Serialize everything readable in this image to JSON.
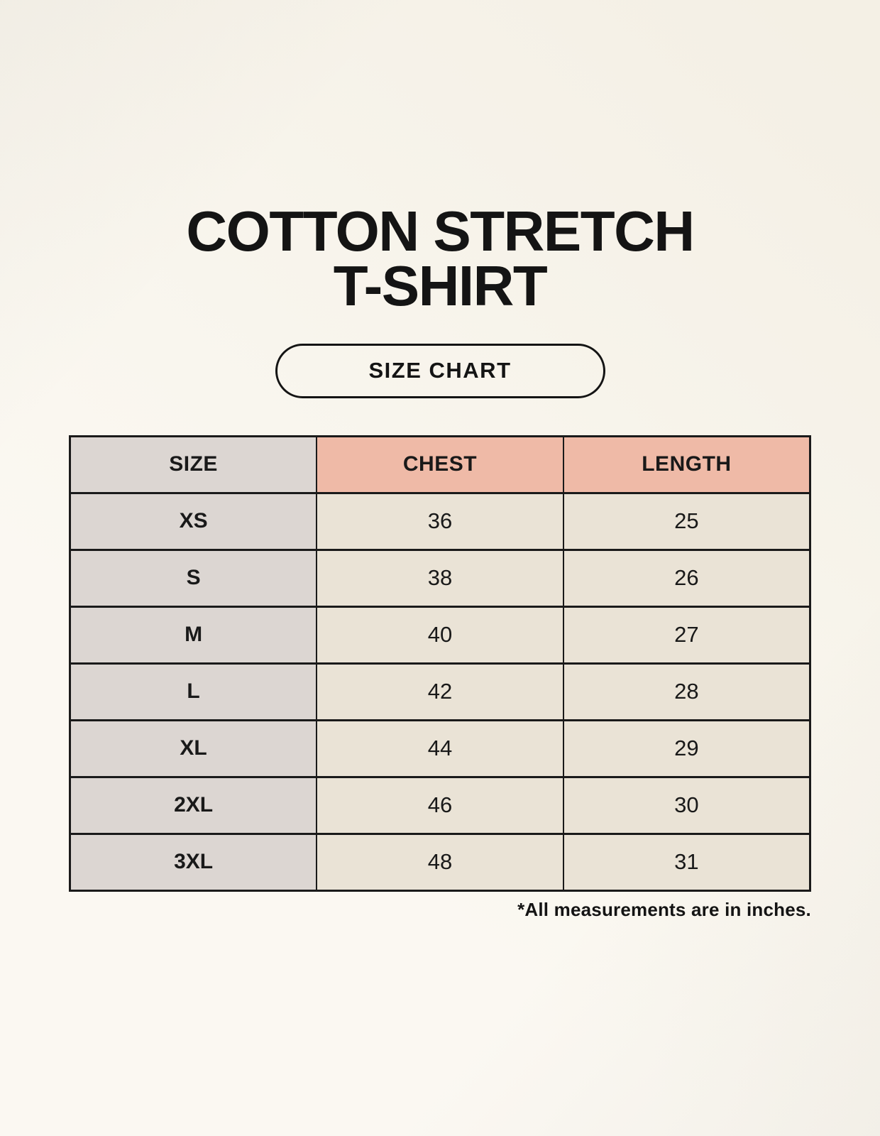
{
  "page": {
    "title_line1": "COTTON STRETCH",
    "title_line2": "T-SHIRT",
    "badge_label": "SIZE CHART",
    "footnote": "*All measurements are in inches."
  },
  "colors": {
    "background": "#f9f5eb",
    "header_size_bg": "#dcd6d2",
    "header_accent_bg": "#efbaa7",
    "row_label_bg": "#dcd6d2",
    "row_value_bg": "#eae3d6",
    "border": "#1a1a1a",
    "text": "#191919"
  },
  "table": {
    "headers": [
      "SIZE",
      "CHEST",
      "LENGTH"
    ],
    "rows": [
      [
        "XS",
        "36",
        "25"
      ],
      [
        "S",
        "38",
        "26"
      ],
      [
        "M",
        "40",
        "27"
      ],
      [
        "L",
        "42",
        "28"
      ],
      [
        "XL",
        "44",
        "29"
      ],
      [
        "2XL",
        "46",
        "30"
      ],
      [
        "3XL",
        "48",
        "31"
      ]
    ]
  },
  "chart_data": {
    "type": "table",
    "title": "Cotton Stretch T-Shirt Size Chart",
    "columns": [
      "SIZE",
      "CHEST",
      "LENGTH"
    ],
    "rows": [
      {
        "size": "XS",
        "chest": 36,
        "length": 25
      },
      {
        "size": "S",
        "chest": 38,
        "length": 26
      },
      {
        "size": "M",
        "chest": 40,
        "length": 27
      },
      {
        "size": "L",
        "chest": 42,
        "length": 28
      },
      {
        "size": "XL",
        "chest": 44,
        "length": 29
      },
      {
        "size": "2XL",
        "chest": 46,
        "length": 30
      },
      {
        "size": "3XL",
        "chest": 48,
        "length": 31
      }
    ],
    "units": "inches",
    "note": "*All measurements are in inches."
  }
}
